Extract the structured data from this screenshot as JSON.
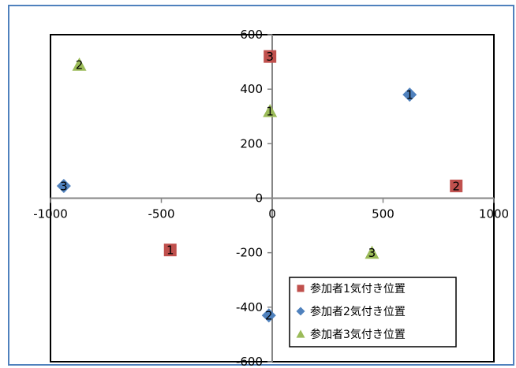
{
  "chart_data": {
    "type": "scatter",
    "xlim": [
      -1000,
      1000
    ],
    "ylim": [
      -600,
      600
    ],
    "x_ticks": [
      -1000,
      -500,
      0,
      500,
      1000
    ],
    "y_ticks": [
      600,
      400,
      200,
      0,
      -200,
      -400,
      -600
    ],
    "x_tick_labels": [
      "-1000",
      "-500",
      "0",
      "500",
      "1000"
    ],
    "y_tick_labels": [
      "600",
      "400",
      "200",
      "0",
      "-200",
      "-400",
      "-600"
    ],
    "legend_position": "bottom-right",
    "grid": false,
    "series": [
      {
        "name": "参加者1気付き位置",
        "marker": "square",
        "color": "#c0504d",
        "points": [
          {
            "x": -460,
            "y": -190,
            "label": "1"
          },
          {
            "x": 830,
            "y": 45,
            "label": "2"
          },
          {
            "x": -10,
            "y": 520,
            "label": "3"
          }
        ]
      },
      {
        "name": "参加者2気付き位置",
        "marker": "diamond",
        "color": "#4f81bd",
        "points": [
          {
            "x": 620,
            "y": 380,
            "label": "1"
          },
          {
            "x": -15,
            "y": -430,
            "label": "2"
          },
          {
            "x": -940,
            "y": 45,
            "label": "3"
          }
        ]
      },
      {
        "name": "参加者3気付き位置",
        "marker": "triangle",
        "color": "#9bbb59",
        "points": [
          {
            "x": -10,
            "y": 320,
            "label": "1"
          },
          {
            "x": -870,
            "y": 490,
            "label": "2"
          },
          {
            "x": 450,
            "y": -200,
            "label": "3"
          }
        ]
      }
    ]
  }
}
